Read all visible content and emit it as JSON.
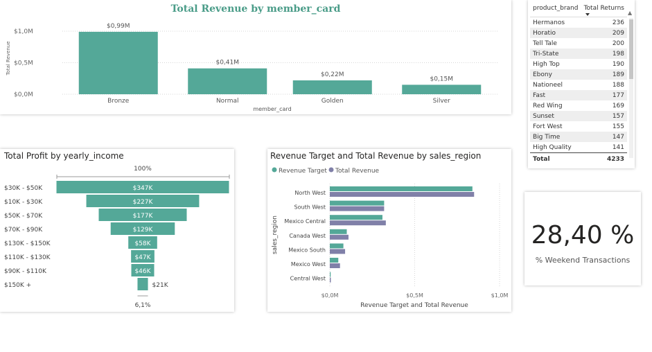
{
  "revenue_card": {
    "title": "Total Revenue by member_card",
    "y_axis_label": "Total Revenue",
    "x_axis_label": "member_card",
    "y_ticks": [
      "$1,0M",
      "$0,5M",
      "$0,0M"
    ],
    "bars": [
      {
        "category": "Bronze",
        "label": "$0,99M"
      },
      {
        "category": "Normal",
        "label": "$0,41M"
      },
      {
        "category": "Golden",
        "label": "$0,22M"
      },
      {
        "category": "Silver",
        "label": "$0,15M"
      }
    ]
  },
  "profit_card": {
    "title": "Total Profit by yearly_income",
    "top_percent": "100%",
    "bottom_percent": "6,1%",
    "stages": [
      {
        "category": "$30K - $50K",
        "label": "$347K"
      },
      {
        "category": "$10K - $30K",
        "label": "$227K"
      },
      {
        "category": "$50K - $70K",
        "label": "$177K"
      },
      {
        "category": "$70K - $90K",
        "label": "$129K"
      },
      {
        "category": "$130K - $150K",
        "label": "$58K"
      },
      {
        "category": "$110K - $130K",
        "label": "$47K"
      },
      {
        "category": "$90K - $110K",
        "label": "$46K"
      },
      {
        "category": "$150K +",
        "label": "$21K"
      }
    ]
  },
  "target_card": {
    "title": "Revenue Target and Total Revenue by sales_region",
    "legend": [
      "Revenue Target",
      "Total Revenue"
    ],
    "y_axis_label": "sales_region",
    "x_axis_label": "Revenue Target and Total Revenue",
    "x_ticks": [
      "$0,0M",
      "$0,5M",
      "$1,0M"
    ],
    "regions": [
      "North West",
      "South West",
      "Mexico Central",
      "Canada West",
      "Mexico South",
      "Mexico West",
      "Central West"
    ]
  },
  "brand_table": {
    "col_brand": "product_brand",
    "col_returns": "Total Returns",
    "rows": [
      {
        "brand": "Hermanos",
        "returns": "236"
      },
      {
        "brand": "Horatio",
        "returns": "209"
      },
      {
        "brand": "Tell Tale",
        "returns": "200"
      },
      {
        "brand": "Tri-State",
        "returns": "198"
      },
      {
        "brand": "High Top",
        "returns": "190"
      },
      {
        "brand": "Ebony",
        "returns": "189"
      },
      {
        "brand": "Nationeel",
        "returns": "188"
      },
      {
        "brand": "Fast",
        "returns": "177"
      },
      {
        "brand": "Red Wing",
        "returns": "169"
      },
      {
        "brand": "Sunset",
        "returns": "157"
      },
      {
        "brand": "Fort West",
        "returns": "155"
      },
      {
        "brand": "Big Time",
        "returns": "147"
      },
      {
        "brand": "High Quality",
        "returns": "141"
      }
    ],
    "total_label": "Total",
    "total_value": "4233"
  },
  "kpi_card": {
    "value": "28,40 %",
    "label": "% Weekend Transactions"
  },
  "colors": {
    "teal": "#54a898",
    "purple": "#8080a8",
    "title_teal": "#4a9c88"
  },
  "chart_data": [
    {
      "type": "bar",
      "title": "Total Revenue by member_card",
      "xlabel": "member_card",
      "ylabel": "Total Revenue",
      "categories": [
        "Bronze",
        "Normal",
        "Golden",
        "Silver"
      ],
      "values": [
        0.99,
        0.41,
        0.22,
        0.15
      ],
      "unit": "$M",
      "ylim": [
        0,
        1.0
      ],
      "grid": true
    },
    {
      "type": "funnel",
      "title": "Total Profit by yearly_income",
      "categories": [
        "$30K - $50K",
        "$10K - $30K",
        "$50K - $70K",
        "$70K - $90K",
        "$130K - $150K",
        "$110K - $130K",
        "$90K - $110K",
        "$150K +"
      ],
      "values": [
        347,
        227,
        177,
        129,
        58,
        47,
        46,
        21
      ],
      "unit": "$K"
    },
    {
      "type": "bar",
      "orientation": "horizontal",
      "title": "Revenue Target and Total Revenue by sales_region",
      "xlabel": "Revenue Target and Total Revenue",
      "ylabel": "sales_region",
      "categories": [
        "North West",
        "South West",
        "Mexico Central",
        "Canada West",
        "Mexico South",
        "Mexico West",
        "Central West"
      ],
      "series": [
        {
          "name": "Revenue Target",
          "values": [
            0.84,
            0.32,
            0.31,
            0.1,
            0.08,
            0.05,
            0.005
          ]
        },
        {
          "name": "Total Revenue",
          "values": [
            0.85,
            0.32,
            0.33,
            0.11,
            0.09,
            0.06,
            0.006
          ]
        }
      ],
      "unit": "$M",
      "xlim": [
        0,
        1.0
      ],
      "legend": "top-left"
    }
  ]
}
